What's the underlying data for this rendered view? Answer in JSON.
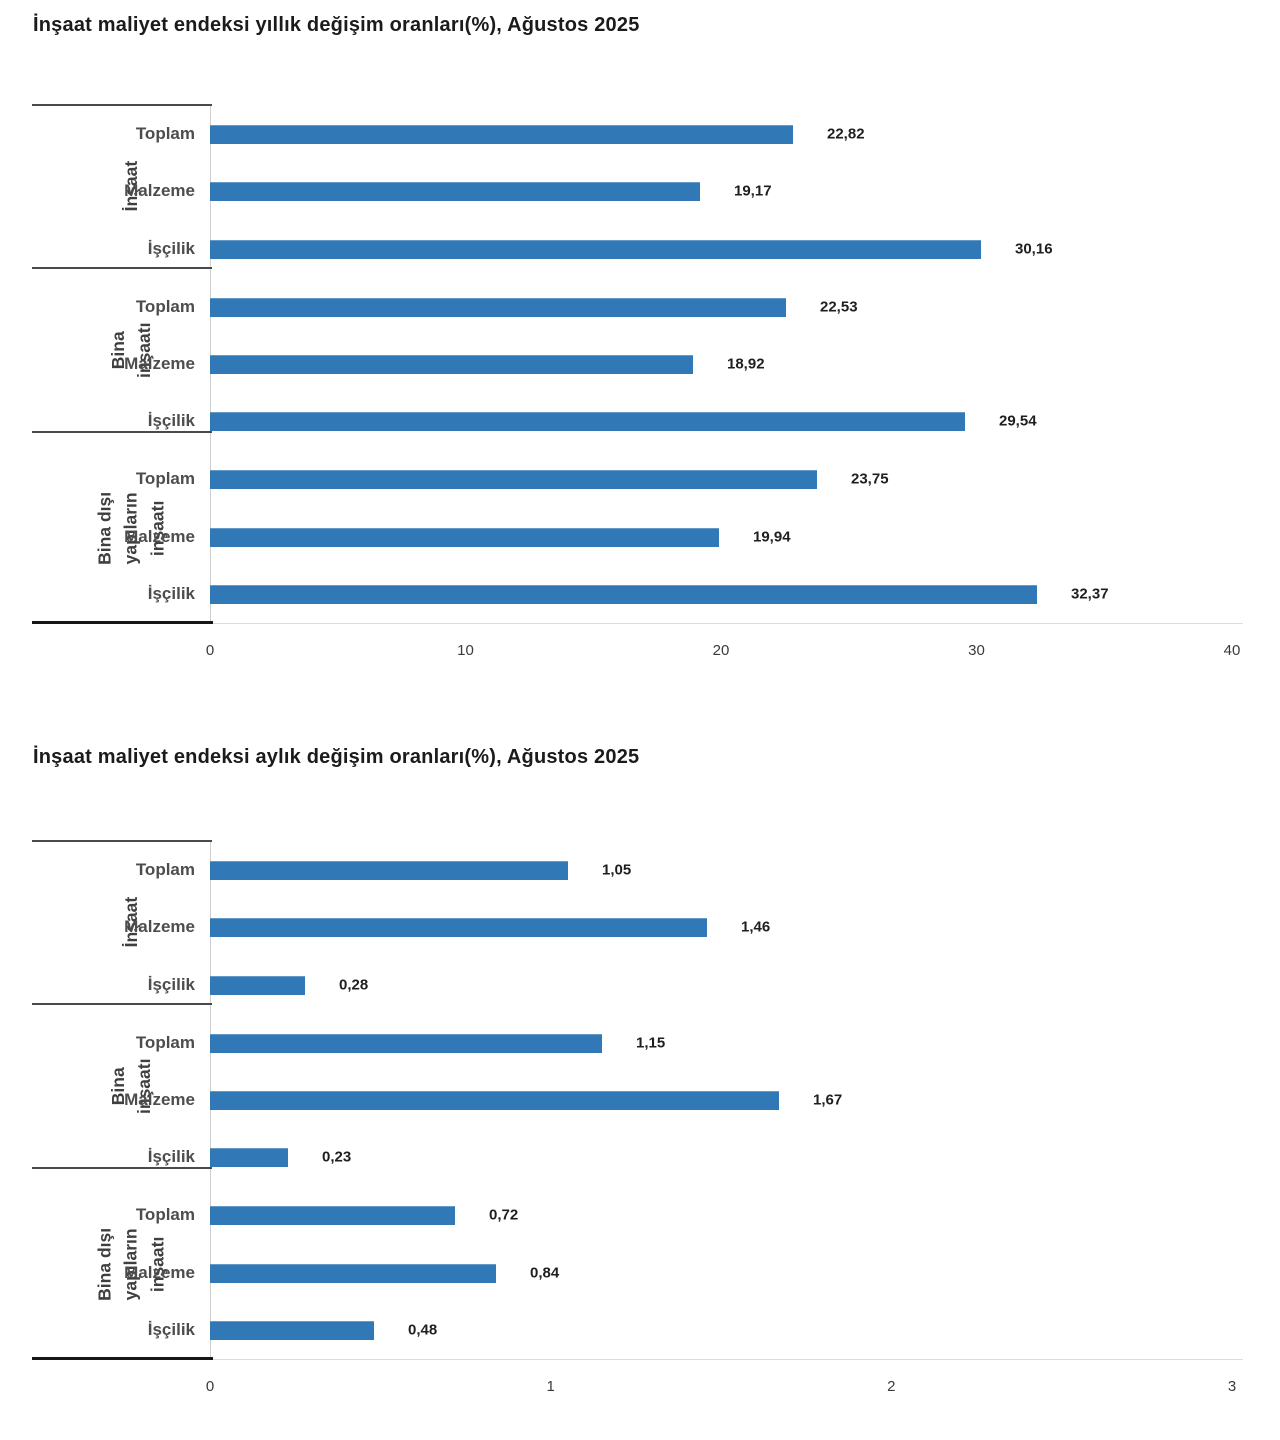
{
  "colors": {
    "bar": "#3079b6",
    "title": "#1b1b1b",
    "category_label": "#4d4d4d",
    "group_label": "#3f3f3f",
    "value_label": "#1f1f1f",
    "tick_label": "#3a3a3a",
    "separator_line": "#4a4a4a",
    "bottom_border": "#161616",
    "axis_line": "#dcdcdc"
  },
  "chart_data": [
    {
      "type": "bar",
      "orientation": "horizontal",
      "title": "İnşaat maliyet endeksi yıllık değişim oranları(%), Ağustos 2025",
      "xlabel": "",
      "ylabel": "",
      "xlim": [
        0,
        40
      ],
      "x_ticks": [
        {
          "label": "0",
          "value": 0
        },
        {
          "label": "10",
          "value": 10
        },
        {
          "label": "20",
          "value": 20
        },
        {
          "label": "30",
          "value": 30
        },
        {
          "label": "40",
          "value": 40
        }
      ],
      "grid": false,
      "legend": false,
      "groups": [
        {
          "label": "İnşaat",
          "rows": [
            {
              "category": "Toplam",
              "value": 22.82,
              "value_label": "22,82"
            },
            {
              "category": "Malzeme",
              "value": 19.17,
              "value_label": "19,17"
            },
            {
              "category": "İşçilik",
              "value": 30.16,
              "value_label": "30,16"
            }
          ]
        },
        {
          "label": "Bina inşaatı",
          "rows": [
            {
              "category": "Toplam",
              "value": 22.53,
              "value_label": "22,53"
            },
            {
              "category": "Malzeme",
              "value": 18.92,
              "value_label": "18,92"
            },
            {
              "category": "İşçilik",
              "value": 29.54,
              "value_label": "29,54"
            }
          ]
        },
        {
          "label": "Bina dışı\nyapıların inşaatı",
          "rows": [
            {
              "category": "Toplam",
              "value": 23.75,
              "value_label": "23,75"
            },
            {
              "category": "Malzeme",
              "value": 19.94,
              "value_label": "19,94"
            },
            {
              "category": "İşçilik",
              "value": 32.37,
              "value_label": "32,37"
            }
          ]
        }
      ]
    },
    {
      "type": "bar",
      "orientation": "horizontal",
      "title": "İnşaat maliyet endeksi aylık değişim oranları(%), Ağustos 2025",
      "xlabel": "",
      "ylabel": "",
      "xlim": [
        0,
        3
      ],
      "x_ticks": [
        {
          "label": "0",
          "value": 0
        },
        {
          "label": "1",
          "value": 1
        },
        {
          "label": "2",
          "value": 2
        },
        {
          "label": "3",
          "value": 3
        }
      ],
      "grid": false,
      "legend": false,
      "groups": [
        {
          "label": "İnşaat",
          "rows": [
            {
              "category": "Toplam",
              "value": 1.05,
              "value_label": "1,05"
            },
            {
              "category": "Malzeme",
              "value": 1.46,
              "value_label": "1,46"
            },
            {
              "category": "İşçilik",
              "value": 0.28,
              "value_label": "0,28"
            }
          ]
        },
        {
          "label": "Bina inşaatı",
          "rows": [
            {
              "category": "Toplam",
              "value": 1.15,
              "value_label": "1,15"
            },
            {
              "category": "Malzeme",
              "value": 1.67,
              "value_label": "1,67"
            },
            {
              "category": "İşçilik",
              "value": 0.23,
              "value_label": "0,23"
            }
          ]
        },
        {
          "label": "Bina dışı\nyapıların inşaatı",
          "rows": [
            {
              "category": "Toplam",
              "value": 0.72,
              "value_label": "0,72"
            },
            {
              "category": "Malzeme",
              "value": 0.84,
              "value_label": "0,84"
            },
            {
              "category": "İşçilik",
              "value": 0.48,
              "value_label": "0,48"
            }
          ]
        }
      ]
    }
  ]
}
